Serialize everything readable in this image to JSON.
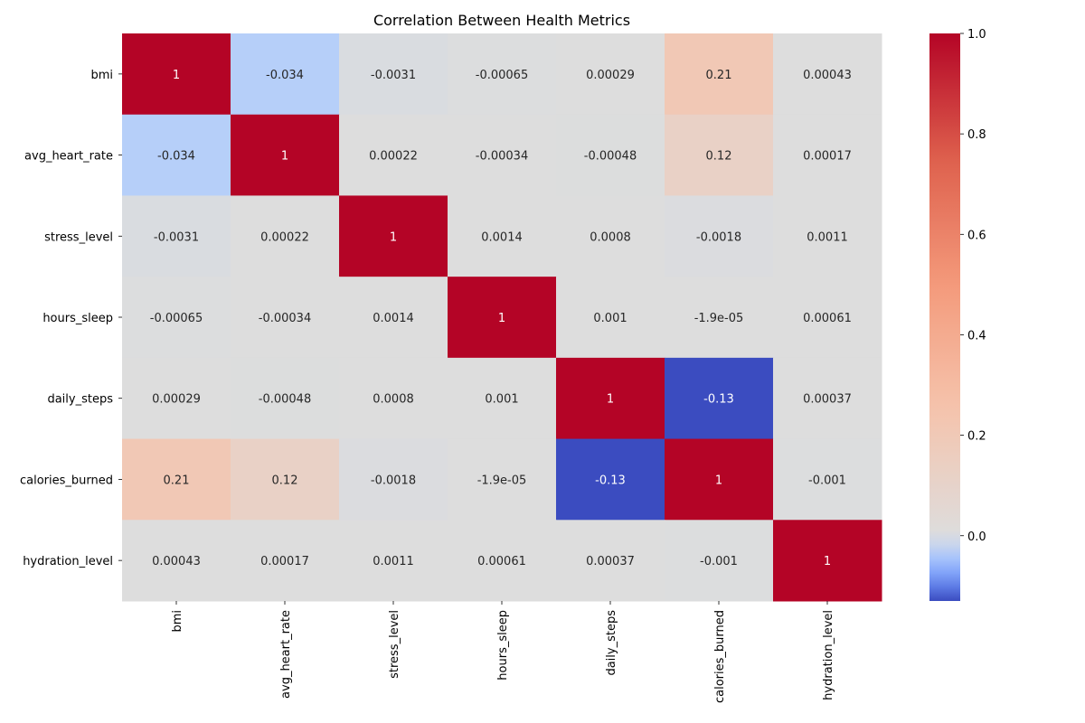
{
  "chart_data": {
    "type": "heatmap",
    "title": "Correlation Between Health Metrics",
    "xlabel": "",
    "ylabel": "",
    "labels": [
      "bmi",
      "avg_heart_rate",
      "stress_level",
      "hours_sleep",
      "daily_steps",
      "calories_burned",
      "hydration_level"
    ],
    "values": [
      [
        1,
        -0.034,
        -0.0031,
        -0.00065,
        0.00029,
        0.21,
        0.00043
      ],
      [
        -0.034,
        1,
        0.00022,
        -0.00034,
        -0.00048,
        0.12,
        0.00017
      ],
      [
        -0.0031,
        0.00022,
        1,
        0.0014,
        0.0008,
        -0.0018,
        0.0011
      ],
      [
        -0.00065,
        -0.00034,
        0.0014,
        1,
        0.001,
        -1.9e-05,
        0.00061
      ],
      [
        0.00029,
        -0.00048,
        0.0008,
        0.001,
        1,
        -0.13,
        0.00037
      ],
      [
        0.21,
        0.12,
        -0.0018,
        -1.9e-05,
        -0.13,
        1,
        -0.001
      ],
      [
        0.00043,
        0.00017,
        0.0011,
        0.00061,
        0.00037,
        -0.001,
        1
      ]
    ],
    "annotations": [
      [
        "1",
        "-0.034",
        "-0.0031",
        "-0.00065",
        "0.00029",
        "0.21",
        "0.00043"
      ],
      [
        "-0.034",
        "1",
        "0.00022",
        "-0.00034",
        "-0.00048",
        "0.12",
        "0.00017"
      ],
      [
        "-0.0031",
        "0.00022",
        "1",
        "0.0014",
        "0.0008",
        "-0.0018",
        "0.0011"
      ],
      [
        "-0.00065",
        "-0.00034",
        "0.0014",
        "1",
        "0.001",
        "-1.9e-05",
        "0.00061"
      ],
      [
        "0.00029",
        "-0.00048",
        "0.0008",
        "0.001",
        "1",
        "-0.13",
        "0.00037"
      ],
      [
        "0.21",
        "0.12",
        "-0.0018",
        "-1.9e-05",
        "-0.13",
        "1",
        "-0.001"
      ],
      [
        "0.00043",
        "0.00017",
        "0.0011",
        "0.00061",
        "0.00037",
        "-0.001",
        "1"
      ]
    ],
    "colormap": "coolwarm",
    "color_center": 0,
    "colorbar": {
      "range": [
        -0.13,
        1.0
      ],
      "ticks": [
        0.0,
        0.2,
        0.4,
        0.6,
        0.8,
        1.0
      ],
      "tick_labels": [
        "0.0",
        "0.2",
        "0.4",
        "0.6",
        "0.8",
        "1.0"
      ]
    }
  }
}
